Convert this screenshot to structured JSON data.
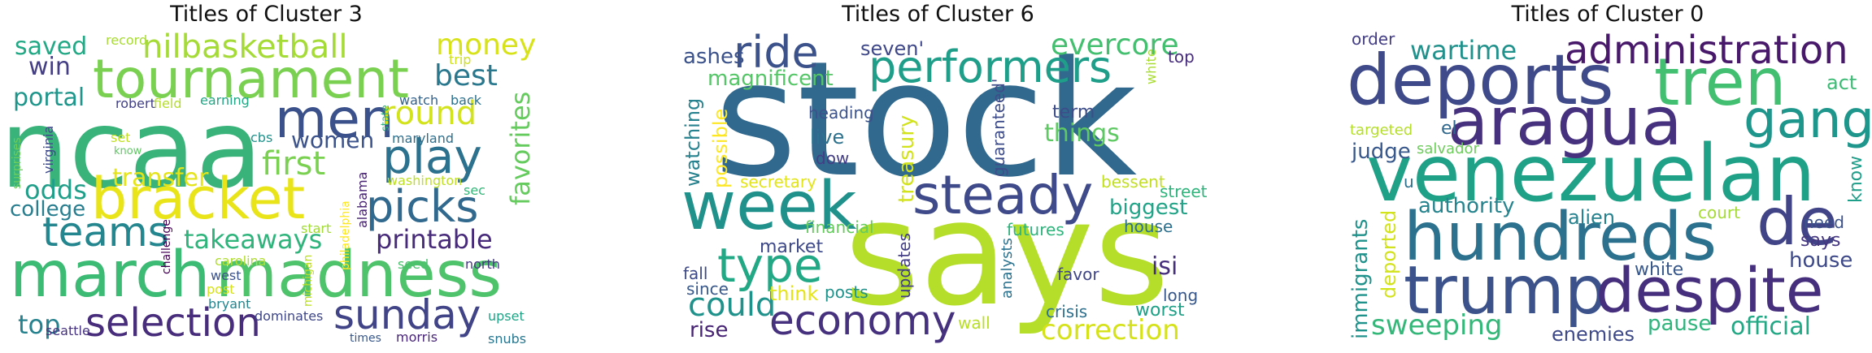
{
  "panels": [
    {
      "title": "Titles of Cluster 3",
      "words": [
        {
          "text": "ncaa",
          "color": "#3ab37a"
        },
        {
          "text": "march",
          "color": "#3cbb75"
        },
        {
          "text": "madness",
          "color": "#4ec36b"
        },
        {
          "text": "tournament",
          "color": "#7ad151"
        },
        {
          "text": "bracket",
          "color": "#e8e419"
        },
        {
          "text": "men",
          "color": "#3b518b"
        },
        {
          "text": "selection",
          "color": "#472d7b"
        },
        {
          "text": "sunday",
          "color": "#414487"
        },
        {
          "text": "play",
          "color": "#2c728e"
        },
        {
          "text": "picks",
          "color": "#31688e"
        },
        {
          "text": "teams",
          "color": "#24868e"
        },
        {
          "text": "nilbasketball",
          "color": "#a5db36"
        },
        {
          "text": "round",
          "color": "#d2e21b"
        },
        {
          "text": "first",
          "color": "#7ad151"
        },
        {
          "text": "money",
          "color": "#d8e219"
        },
        {
          "text": "best",
          "color": "#2a788e"
        },
        {
          "text": "women",
          "color": "#3b528b"
        },
        {
          "text": "favorites",
          "color": "#65cb5e"
        },
        {
          "text": "takeaways",
          "color": "#2fb47c"
        },
        {
          "text": "printable",
          "color": "#472a7a"
        },
        {
          "text": "odds",
          "color": "#1f9e89"
        },
        {
          "text": "college",
          "color": "#287d8e"
        },
        {
          "text": "saved",
          "color": "#22a884"
        },
        {
          "text": "win",
          "color": "#433e85"
        },
        {
          "text": "portal",
          "color": "#1f968b"
        },
        {
          "text": "transfer",
          "color": "#e5e419"
        },
        {
          "text": "top",
          "color": "#26828e"
        },
        {
          "text": "record",
          "color": "#a8db34"
        },
        {
          "text": "trip",
          "color": "#cde11d"
        },
        {
          "text": "earning",
          "color": "#22a785"
        },
        {
          "text": "robert",
          "color": "#424086"
        },
        {
          "text": "field",
          "color": "#b5de2b"
        },
        {
          "text": "watch",
          "color": "#33638d"
        },
        {
          "text": "back",
          "color": "#2c718e"
        },
        {
          "text": "state",
          "color": "#29af7f"
        },
        {
          "text": "maryland",
          "color": "#2d708e"
        },
        {
          "text": "virginia",
          "color": "#3e4989"
        },
        {
          "text": "surprises",
          "color": "#6ccd5a"
        },
        {
          "text": "set",
          "color": "#c0df25"
        },
        {
          "text": "know",
          "color": "#5ec962"
        },
        {
          "text": "cbs",
          "color": "#20928c"
        },
        {
          "text": "washington",
          "color": "#bddf26"
        },
        {
          "text": "sec",
          "color": "#35b779"
        },
        {
          "text": "alabama",
          "color": "#482374"
        },
        {
          "text": "philadelphia",
          "color": "#fde725"
        },
        {
          "text": "challenge",
          "color": "#440154"
        },
        {
          "text": "start",
          "color": "#a2da37"
        },
        {
          "text": "carolina",
          "color": "#b0dd2f"
        },
        {
          "text": "west",
          "color": "#3b528b"
        },
        {
          "text": "post",
          "color": "#d5e21a"
        },
        {
          "text": "bryant",
          "color": "#25848e"
        },
        {
          "text": "seed",
          "color": "#4ac16d"
        },
        {
          "text": "north",
          "color": "#453781"
        },
        {
          "text": "michigan",
          "color": "#bade28"
        },
        {
          "text": "dominates",
          "color": "#3f4788"
        },
        {
          "text": "seattle",
          "color": "#46337f"
        },
        {
          "text": "times",
          "color": "#38588c"
        },
        {
          "text": "morris",
          "color": "#482576"
        },
        {
          "text": "upset",
          "color": "#20a386"
        },
        {
          "text": "snubs",
          "color": "#2a768e"
        }
      ]
    },
    {
      "title": "Titles of Cluster 6",
      "words": [
        {
          "text": "stock",
          "color": "#31688e"
        },
        {
          "text": "says",
          "color": "#b5de2b"
        },
        {
          "text": "week",
          "color": "#21918c"
        },
        {
          "text": "steady",
          "color": "#3e4a89"
        },
        {
          "text": "ride",
          "color": "#3b528b"
        },
        {
          "text": "performers",
          "color": "#1f9e89"
        },
        {
          "text": "evercore",
          "color": "#44bf70"
        },
        {
          "text": "economy",
          "color": "#46317e"
        },
        {
          "text": "type",
          "color": "#22a884"
        },
        {
          "text": "correction",
          "color": "#d5e21a"
        },
        {
          "text": "could",
          "color": "#20928c"
        },
        {
          "text": "ashes",
          "color": "#3b528b"
        },
        {
          "text": "magnificent",
          "color": "#55c667"
        },
        {
          "text": "seven'",
          "color": "#3f4889"
        },
        {
          "text": "white",
          "color": "#a8db34"
        },
        {
          "text": "top",
          "color": "#472d7b"
        },
        {
          "text": "heading",
          "color": "#3b528b"
        },
        {
          "text": "live",
          "color": "#2c718e"
        },
        {
          "text": "dow",
          "color": "#433e85"
        },
        {
          "text": "term",
          "color": "#3d4d8a"
        },
        {
          "text": "things",
          "color": "#5ec962"
        },
        {
          "text": "watching",
          "color": "#26828e"
        },
        {
          "text": "possible",
          "color": "#fde725"
        },
        {
          "text": "treasury",
          "color": "#d2e21b"
        },
        {
          "text": "guaranteed'",
          "color": "#3e4c8a"
        },
        {
          "text": "secretary",
          "color": "#e2e418"
        },
        {
          "text": "bessent",
          "color": "#c2df23"
        },
        {
          "text": "biggest",
          "color": "#20a386"
        },
        {
          "text": "street",
          "color": "#2fb47c"
        },
        {
          "text": "house",
          "color": "#2d708e"
        },
        {
          "text": "financial",
          "color": "#65cb5e"
        },
        {
          "text": "futures",
          "color": "#2fb47c"
        },
        {
          "text": "market",
          "color": "#3e4989"
        },
        {
          "text": "updates",
          "color": "#433e85"
        },
        {
          "text": "fall",
          "color": "#3e4989"
        },
        {
          "text": "since",
          "color": "#38588c"
        },
        {
          "text": "think",
          "color": "#e5e419"
        },
        {
          "text": "posts",
          "color": "#20928c"
        },
        {
          "text": "analysts",
          "color": "#2c728e"
        },
        {
          "text": "favor",
          "color": "#404688"
        },
        {
          "text": "isi",
          "color": "#46307e"
        },
        {
          "text": "long",
          "color": "#38588c"
        },
        {
          "text": "worst",
          "color": "#1fa188"
        },
        {
          "text": "rise",
          "color": "#482475"
        },
        {
          "text": "wall",
          "color": "#b8de29"
        },
        {
          "text": "crisis",
          "color": "#2d708e"
        }
      ]
    },
    {
      "title": "Titles of Cluster 0",
      "words": [
        {
          "text": "venezuelan",
          "color": "#1fa187"
        },
        {
          "text": "deports",
          "color": "#3e4a89"
        },
        {
          "text": "tren",
          "color": "#43bf71"
        },
        {
          "text": "aragua",
          "color": "#46317e"
        },
        {
          "text": "gang",
          "color": "#1f968b"
        },
        {
          "text": "administration",
          "color": "#48186a"
        },
        {
          "text": "hundreds",
          "color": "#2c728e"
        },
        {
          "text": "de",
          "color": "#414487"
        },
        {
          "text": "trump",
          "color": "#3b528b"
        },
        {
          "text": "despite",
          "color": "#46307e"
        },
        {
          "text": "wartime",
          "color": "#21918c"
        },
        {
          "text": "act",
          "color": "#3cbb75"
        },
        {
          "text": "order",
          "color": "#433e85"
        },
        {
          "text": "targeted",
          "color": "#b5de2b"
        },
        {
          "text": "judge",
          "color": "#38588c"
        },
        {
          "text": "el",
          "color": "#31688e"
        },
        {
          "text": "salvador",
          "color": "#6ccd5a"
        },
        {
          "text": "know",
          "color": "#1f9e89"
        },
        {
          "text": "u",
          "color": "#2c718e"
        },
        {
          "text": "authority",
          "color": "#25848e"
        },
        {
          "text": "alien",
          "color": "#26828e"
        },
        {
          "text": "court",
          "color": "#a5db36"
        },
        {
          "text": "need",
          "color": "#3b528b"
        },
        {
          "text": "says",
          "color": "#453781"
        },
        {
          "text": "house",
          "color": "#3e4989"
        },
        {
          "text": "immigrants",
          "color": "#20928c"
        },
        {
          "text": "deported",
          "color": "#d2e21b"
        },
        {
          "text": "white",
          "color": "#38588c"
        },
        {
          "text": "sweeping",
          "color": "#35b779"
        },
        {
          "text": "pause",
          "color": "#2fb47c"
        },
        {
          "text": "official",
          "color": "#22a884"
        },
        {
          "text": "enemies",
          "color": "#3e4a89"
        }
      ]
    }
  ]
}
